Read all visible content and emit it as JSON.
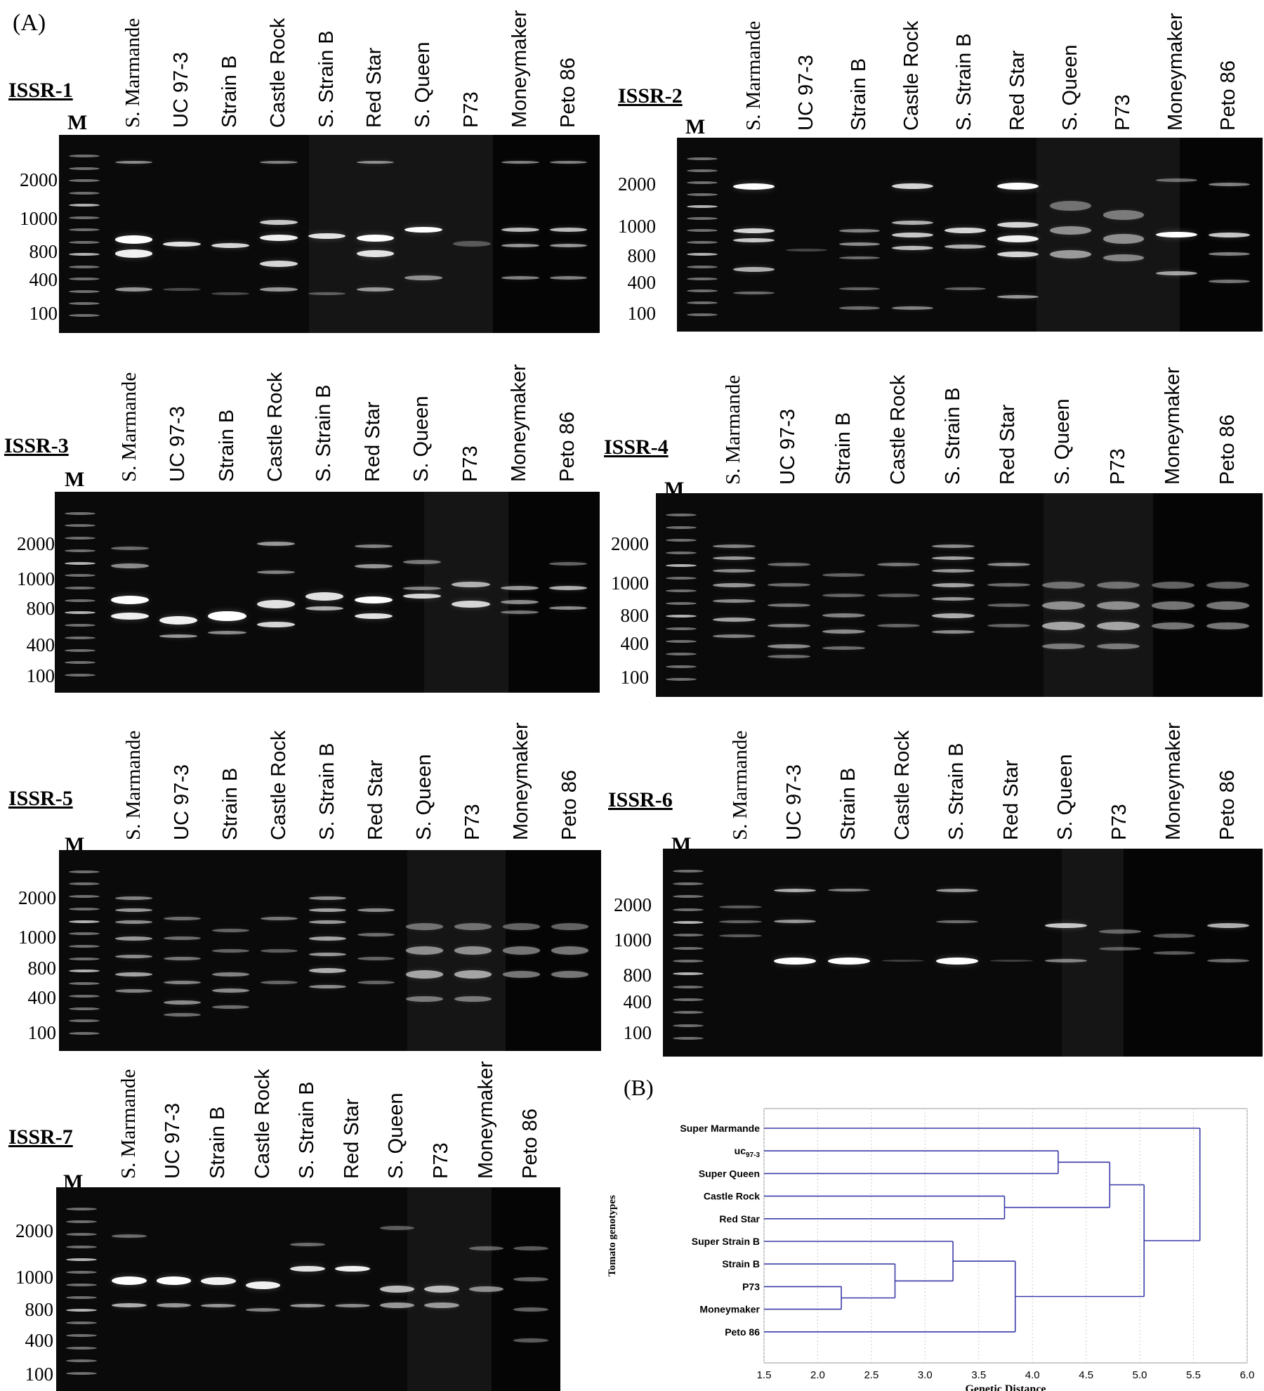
{
  "panel_a_label": "(A)",
  "panel_b_label": "(B)",
  "marker_label": "M",
  "lanes": [
    "S. Marmande",
    "UC 97-3",
    "Strain B",
    "Castle Rock",
    "S. Strain B",
    "Red Star",
    "S. Queen",
    "P73",
    "Moneymaker",
    "Peto 86"
  ],
  "sizes": [
    "2000",
    "1000",
    "800",
    "400",
    "100"
  ],
  "gels": [
    {
      "title": "ISSR-1"
    },
    {
      "title": "ISSR-2"
    },
    {
      "title": "ISSR-3"
    },
    {
      "title": "ISSR-4"
    },
    {
      "title": "ISSR-5"
    },
    {
      "title": "ISSR-6"
    },
    {
      "title": "ISSR-7"
    }
  ],
  "dendrogram": {
    "y_axis_label": "Tomato genotypes",
    "x_axis_label": "Genetic Distance",
    "line_color": "#3a3aa8",
    "xlim": [
      1.5,
      6.0
    ],
    "ticks": [
      "1.5",
      "2.0",
      "2.5",
      "3.0",
      "3.5",
      "4.0",
      "4.5",
      "5.0",
      "5.5",
      "6.0"
    ],
    "leaves": [
      {
        "name": "Super Marmande",
        "sub": ""
      },
      {
        "name": "uc",
        "sub": "97-3"
      },
      {
        "name": "Super Queen",
        "sub": ""
      },
      {
        "name": "Castle Rock",
        "sub": ""
      },
      {
        "name": "Red Star",
        "sub": ""
      },
      {
        "name": "Super Strain B",
        "sub": ""
      },
      {
        "name": "Strain B",
        "sub": ""
      },
      {
        "name": "P73",
        "sub": ""
      },
      {
        "name": "Moneymaker",
        "sub": ""
      },
      {
        "name": "Peto 86",
        "sub": ""
      }
    ],
    "merges": [
      {
        "a": 7,
        "b": 8,
        "height": 2.22
      },
      {
        "a": 6,
        "b": 10,
        "height": 2.72
      },
      {
        "a": 5,
        "b": 11,
        "height": 3.26
      },
      {
        "a": 3,
        "b": 4,
        "height": 3.74
      },
      {
        "a": 12,
        "b": 9,
        "height": 3.84
      },
      {
        "a": 1,
        "b": 2,
        "height": 4.24
      },
      {
        "a": 15,
        "b": 13,
        "height": 4.72
      },
      {
        "a": 16,
        "b": 14,
        "height": 5.04
      },
      {
        "a": 0,
        "b": 17,
        "height": 5.56
      }
    ]
  }
}
